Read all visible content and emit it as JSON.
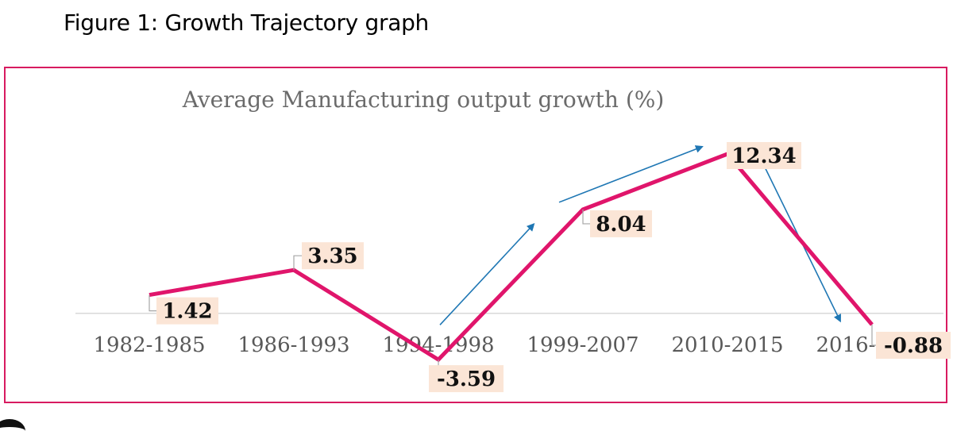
{
  "figure_caption": "Figure 1: Growth Trajectory graph",
  "chart_data": {
    "type": "line",
    "title": "Average Manufacturing output growth (%)",
    "categories": [
      "1982-1985",
      "1986-1993",
      "1994-1998",
      "1999-2007",
      "2010-2015",
      "2016-2020"
    ],
    "series": [
      {
        "values": [
          1.42,
          3.35,
          -3.59,
          8.04,
          12.34,
          -0.88
        ],
        "labels": [
          "1.42",
          "3.35",
          "-3.59",
          "8.04",
          "12.34",
          "-0.88"
        ]
      }
    ],
    "xlabel": "",
    "ylabel": "",
    "ylim": [
      -4.2,
      13.2
    ],
    "grid": false,
    "legend": "none",
    "annotations": [
      {
        "type": "trend-arrow",
        "description": "upward trend arrow from 1994-1998 toward 1999-2007"
      },
      {
        "type": "trend-arrow",
        "description": "upward trend arrow from 1999-2007 toward 2010-2015"
      },
      {
        "type": "trend-arrow",
        "description": "downward trend arrow from 2010-2015 toward 2016-2020"
      }
    ]
  },
  "colors": {
    "line": "#e0156b",
    "frame": "#d81b60",
    "label_bg": "#fbe5d6",
    "arrow": "#1f77b4",
    "axis": "#d9d9d9",
    "leader": "#a6a6a6"
  }
}
